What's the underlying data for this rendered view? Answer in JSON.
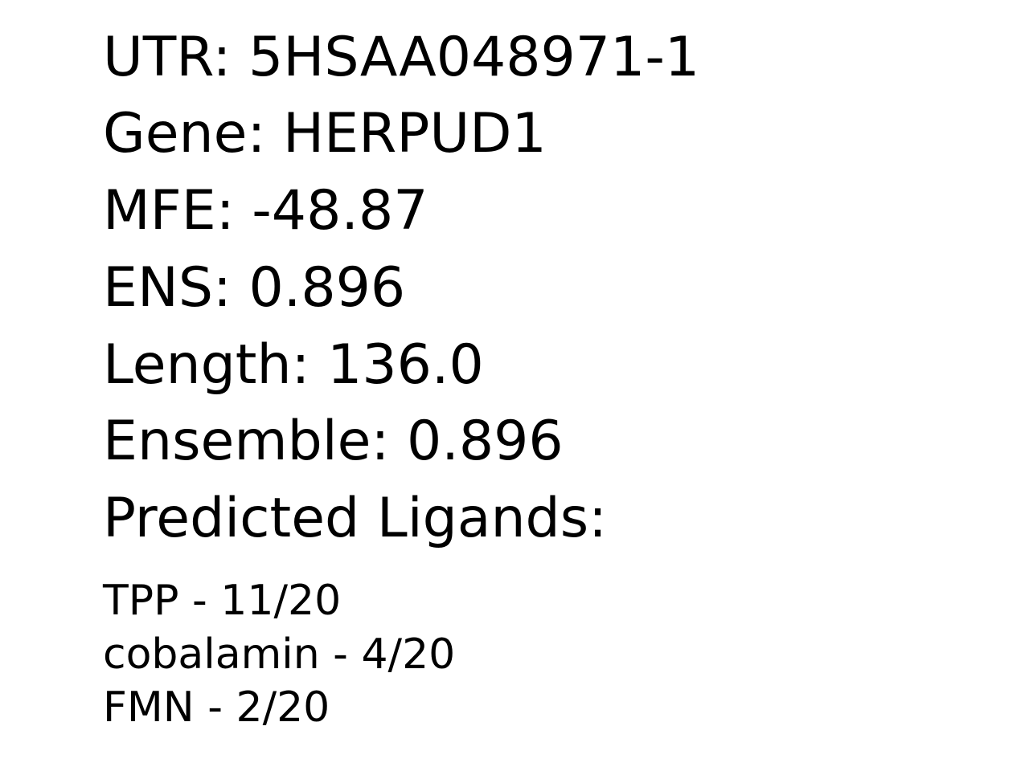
{
  "record": {
    "utr": "UTR: 5HSAA048971-1",
    "gene": "Gene: HERPUD1",
    "mfe": "MFE: -48.87",
    "ens": "ENS: 0.896",
    "length": "Length: 136.0",
    "ensemble": "Ensemble: 0.896",
    "ligands_heading": "Predicted Ligands:"
  },
  "ligands": [
    "TPP - 11/20",
    "cobalamin - 4/20",
    "FMN - 2/20"
  ]
}
